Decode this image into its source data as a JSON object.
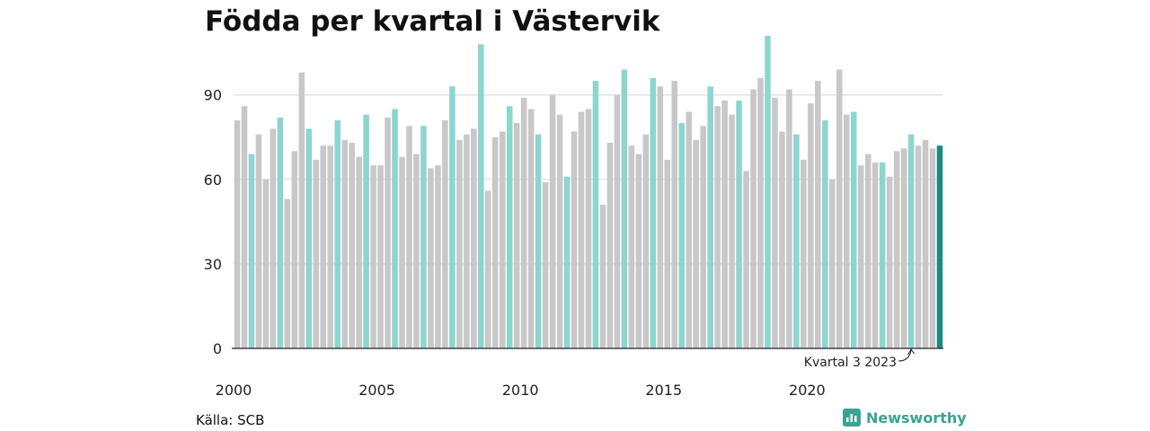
{
  "title": "Födda per kvartal i Västervik",
  "source": "Källa: SCB",
  "brand": {
    "name": "Newsworthy",
    "icon": "newsworthy-logo-icon",
    "color": "#3aa391"
  },
  "colors": {
    "default": "#c8c8c8",
    "highlight": "#8dd5cf",
    "last": "#1a8a80",
    "grid": "#dddddd"
  },
  "chart_data": {
    "type": "bar",
    "title": "Födda per kvartal i Västervik",
    "xlabel": "",
    "ylabel": "",
    "ylim": [
      0,
      110
    ],
    "yticks": [
      0,
      30,
      60,
      90
    ],
    "grid": true,
    "start_year": 2000,
    "year_labels": [
      "2000",
      "2005",
      "2010",
      "2015",
      "2020"
    ],
    "highlight_quarter": 3,
    "annotation": {
      "text": "Kvartal 3 2023",
      "year": 2023,
      "quarter": 3
    },
    "values": [
      81,
      86,
      69,
      76,
      60,
      78,
      82,
      53,
      70,
      98,
      78,
      67,
      72,
      72,
      81,
      74,
      73,
      68,
      83,
      65,
      65,
      82,
      85,
      68,
      79,
      69,
      79,
      64,
      65,
      81,
      93,
      74,
      76,
      78,
      108,
      56,
      75,
      77,
      86,
      80,
      89,
      85,
      76,
      59,
      90,
      83,
      61,
      77,
      84,
      85,
      95,
      51,
      73,
      90,
      99,
      72,
      69,
      76,
      96,
      93,
      67,
      95,
      80,
      84,
      74,
      79,
      93,
      86,
      88,
      83,
      88,
      63,
      92,
      96,
      111,
      89,
      77,
      92,
      76,
      67,
      87,
      95,
      81,
      60,
      99,
      83,
      84,
      65,
      69,
      66,
      66,
      61,
      70,
      71,
      76,
      72,
      74,
      71,
      72
    ]
  }
}
